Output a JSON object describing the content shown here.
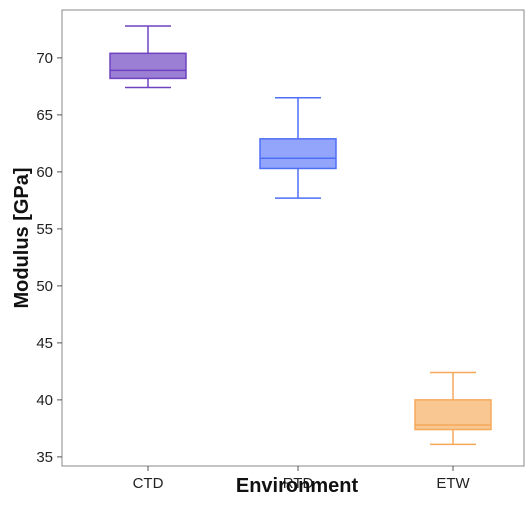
{
  "chart_data": {
    "type": "box",
    "title": "",
    "xlabel": "Environment",
    "ylabel": "Modulus [GPa]",
    "ylim": [
      34.2,
      74.2
    ],
    "yticks": [
      35,
      40,
      45,
      50,
      55,
      60,
      65,
      70
    ],
    "grid": false,
    "categories": [
      "CTD",
      "RTD",
      "ETW"
    ],
    "boxes": [
      {
        "category": "CTD",
        "min": 67.4,
        "q1": 68.2,
        "median": 68.9,
        "q3": 70.4,
        "max": 72.8,
        "color": "#6f42c1",
        "fill": "#9b7fd4"
      },
      {
        "category": "RTD",
        "min": 57.7,
        "q1": 60.3,
        "median": 61.2,
        "q3": 62.9,
        "max": 66.5,
        "color": "#4f6ef7",
        "fill": "#93a5fb"
      },
      {
        "category": "ETW",
        "min": 36.1,
        "q1": 37.4,
        "median": 37.8,
        "q3": 40.0,
        "max": 42.4,
        "color": "#f5a85a",
        "fill": "#f9c892"
      }
    ]
  }
}
